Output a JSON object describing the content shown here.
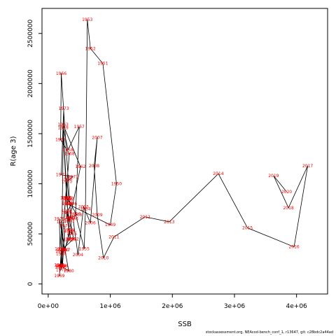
{
  "chart_data": {
    "type": "line",
    "xlabel": "SSB",
    "ylabel": "R(age 3)",
    "xlim": [
      -100000,
      4500000
    ],
    "ylim": [
      -100000,
      2750000
    ],
    "xticks": [
      0,
      1000000,
      2000000,
      3000000,
      4000000
    ],
    "xtick_labels": [
      "0e+00",
      "1e+06",
      "2e+06",
      "3e+06",
      "4e+06"
    ],
    "yticks": [
      0,
      500000,
      1000000,
      1500000,
      2000000,
      2500000
    ],
    "ytick_labels": [
      "0",
      "500000",
      "1000000",
      "1500000",
      "2000000",
      "2500000"
    ],
    "line_color": "#000000",
    "label_color": "#ff0000",
    "points": [
      {
        "year": "1946",
        "x": 300000,
        "y": 1050000
      },
      {
        "year": "1947",
        "x": 330000,
        "y": 850000
      },
      {
        "year": "1948",
        "x": 310000,
        "y": 800000
      },
      {
        "year": "1949",
        "x": 1000000,
        "y": 590000
      },
      {
        "year": "1950",
        "x": 1100000,
        "y": 1000000
      },
      {
        "year": "1951",
        "x": 880000,
        "y": 2200000
      },
      {
        "year": "1952",
        "x": 680000,
        "y": 2350000
      },
      {
        "year": "1953",
        "x": 630000,
        "y": 2640000
      },
      {
        "year": "1954",
        "x": 600000,
        "y": 750000
      },
      {
        "year": "1955",
        "x": 580000,
        "y": 350000
      },
      {
        "year": "1956",
        "x": 440000,
        "y": 700000
      },
      {
        "year": "1957",
        "x": 500000,
        "y": 1570000
      },
      {
        "year": "1958",
        "x": 320000,
        "y": 1340000
      },
      {
        "year": "1959",
        "x": 240000,
        "y": 1560000
      },
      {
        "year": "1960",
        "x": 300000,
        "y": 800000
      },
      {
        "year": "1961",
        "x": 340000,
        "y": 630000
      },
      {
        "year": "1962",
        "x": 520000,
        "y": 1170000
      },
      {
        "year": "1963",
        "x": 240000,
        "y": 1590000
      },
      {
        "year": "1964",
        "x": 330000,
        "y": 540000
      },
      {
        "year": "1965",
        "x": 380000,
        "y": 500000
      },
      {
        "year": "1966",
        "x": 210000,
        "y": 2100000
      },
      {
        "year": "1967",
        "x": 200000,
        "y": 1440000
      },
      {
        "year": "1968",
        "x": 340000,
        "y": 1300000
      },
      {
        "year": "1969",
        "x": 180000,
        "y": 80000
      },
      {
        "year": "1970",
        "x": 300000,
        "y": 1020000
      },
      {
        "year": "1971",
        "x": 400000,
        "y": 1070000
      },
      {
        "year": "1972",
        "x": 210000,
        "y": 1090000
      },
      {
        "year": "1973",
        "x": 250000,
        "y": 1750000
      },
      {
        "year": "1974",
        "x": 210000,
        "y": 140000
      },
      {
        "year": "1975",
        "x": 270000,
        "y": 580000
      },
      {
        "year": "1976",
        "x": 230000,
        "y": 180000
      },
      {
        "year": "1977",
        "x": 220000,
        "y": 620000
      },
      {
        "year": "1978",
        "x": 190000,
        "y": 350000
      },
      {
        "year": "1979",
        "x": 180000,
        "y": 650000
      },
      {
        "year": "1980",
        "x": 330000,
        "y": 130000
      },
      {
        "year": "1981",
        "x": 180000,
        "y": 190000
      },
      {
        "year": "1982",
        "x": 190000,
        "y": 170000
      },
      {
        "year": "1983",
        "x": 210000,
        "y": 180000
      },
      {
        "year": "1984",
        "x": 200000,
        "y": 180000
      },
      {
        "year": "1985",
        "x": 220000,
        "y": 340000
      },
      {
        "year": "1986",
        "x": 210000,
        "y": 300000
      },
      {
        "year": "1987",
        "x": 270000,
        "y": 340000
      },
      {
        "year": "1988",
        "x": 340000,
        "y": 530000
      },
      {
        "year": "1989",
        "x": 330000,
        "y": 440000
      },
      {
        "year": "1990",
        "x": 250000,
        "y": 340000
      },
      {
        "year": "1991",
        "x": 200000,
        "y": 330000
      },
      {
        "year": "1992",
        "x": 410000,
        "y": 450000
      },
      {
        "year": "1993",
        "x": 300000,
        "y": 730000
      },
      {
        "year": "1994",
        "x": 360000,
        "y": 450000
      },
      {
        "year": "1995",
        "x": 290000,
        "y": 710000
      },
      {
        "year": "1996",
        "x": 380000,
        "y": 800000
      },
      {
        "year": "1997",
        "x": 280000,
        "y": 860000
      },
      {
        "year": "1998",
        "x": 310000,
        "y": 840000
      },
      {
        "year": "1999",
        "x": 300000,
        "y": 860000
      },
      {
        "year": "2000",
        "x": 460000,
        "y": 690000
      },
      {
        "year": "2001",
        "x": 360000,
        "y": 660000
      },
      {
        "year": "2002",
        "x": 350000,
        "y": 660000
      },
      {
        "year": "2003",
        "x": 400000,
        "y": 650000
      },
      {
        "year": "2004",
        "x": 480000,
        "y": 290000
      },
      {
        "year": "2005",
        "x": 570000,
        "y": 770000
      },
      {
        "year": "2006",
        "x": 680000,
        "y": 610000
      },
      {
        "year": "2007",
        "x": 790000,
        "y": 1460000
      },
      {
        "year": "2008",
        "x": 740000,
        "y": 1180000
      },
      {
        "year": "2009",
        "x": 790000,
        "y": 690000
      },
      {
        "year": "2010",
        "x": 890000,
        "y": 260000
      },
      {
        "year": "2011",
        "x": 1060000,
        "y": 470000
      },
      {
        "year": "2012",
        "x": 1560000,
        "y": 670000
      },
      {
        "year": "2013",
        "x": 1950000,
        "y": 620000
      },
      {
        "year": "2014",
        "x": 2740000,
        "y": 1100000
      },
      {
        "year": "2015",
        "x": 3210000,
        "y": 560000
      },
      {
        "year": "2016",
        "x": 3960000,
        "y": 370000
      },
      {
        "year": "2017",
        "x": 4180000,
        "y": 1180000
      },
      {
        "year": "2018",
        "x": 3870000,
        "y": 760000
      },
      {
        "year": "2019",
        "x": 3630000,
        "y": 1080000
      },
      {
        "year": "2020",
        "x": 3840000,
        "y": 920000
      }
    ]
  },
  "footer": "stockassessment.org, NEAcod-bench_conf_1, r13647, git: c28bdc2a44ad"
}
